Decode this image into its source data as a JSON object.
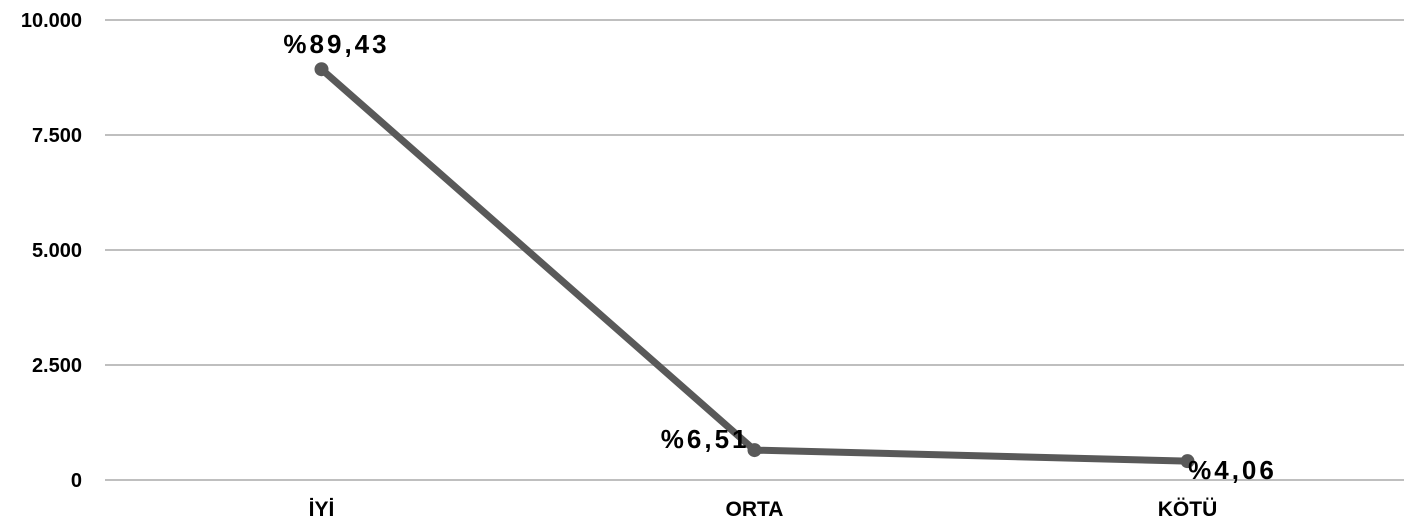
{
  "chart_data": {
    "type": "line",
    "categories": [
      "İYİ",
      "ORTA",
      "KÖTÜ"
    ],
    "series": [
      {
        "values": [
          8930,
          650,
          410
        ],
        "labels": [
          "%89,43",
          "%6,51",
          "%4,06"
        ],
        "color": "#595959"
      }
    ],
    "yticks": [
      "0",
      "2.500",
      "5.000",
      "7.500",
      "10.000"
    ],
    "ytick_values": [
      0,
      2500,
      5000,
      7500,
      10000
    ],
    "ylim": [
      0,
      10000
    ],
    "grid": true,
    "gridline_color": "#bfbfbf",
    "legend": "none"
  }
}
